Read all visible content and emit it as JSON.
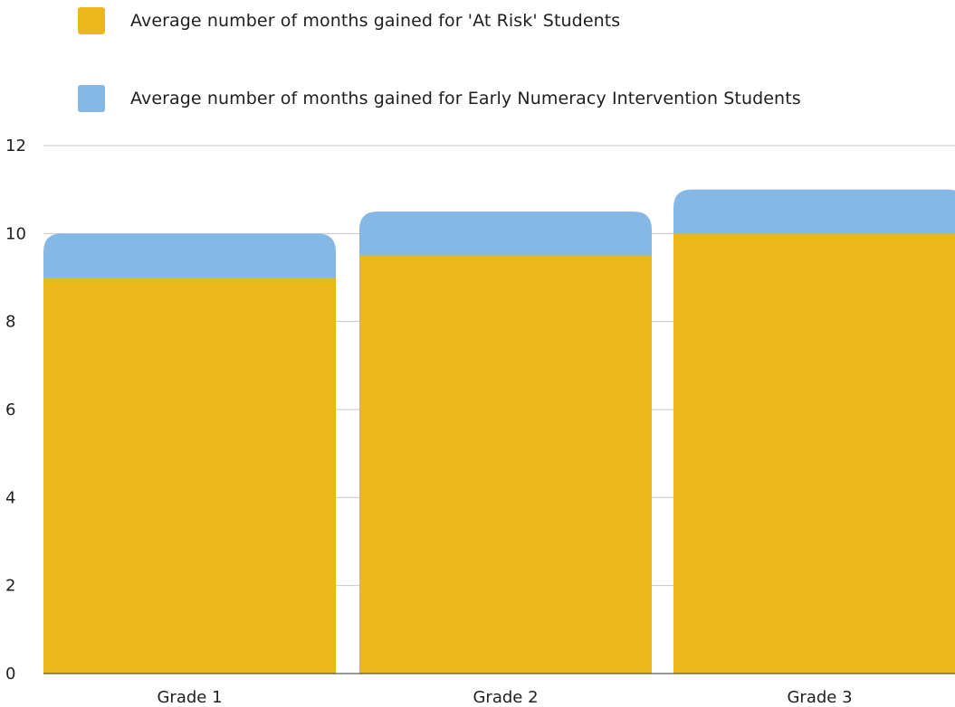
{
  "chart_data": {
    "type": "bar",
    "stacked": true,
    "categories": [
      "Grade 1",
      "Grade 2",
      "Grade 3"
    ],
    "series": [
      {
        "name": "Average number of months gained for 'At Risk' Students",
        "color": "#ebb81b",
        "values": [
          9,
          9.5,
          10
        ]
      },
      {
        "name": "Average number of months gained for Early Numeracy Intervention Students",
        "color": "#85b8e4",
        "values": [
          1,
          1,
          1
        ]
      }
    ],
    "yticks": [
      "0",
      "2",
      "4",
      "6",
      "8",
      "10",
      "12"
    ],
    "ylim": [
      0,
      12
    ],
    "grid": true,
    "legend_position": "top"
  }
}
